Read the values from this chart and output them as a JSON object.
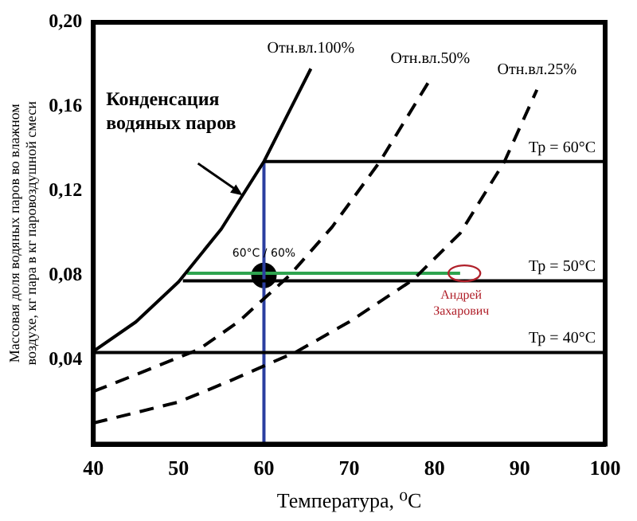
{
  "chart_data": {
    "type": "line",
    "xlabel": "Температура, ⁰С",
    "ylabel": "Массовая доля водяных паров во влажном воздухе, кг пара в кг паровоздушной смеси",
    "xlim": [
      40,
      100
    ],
    "xticks": [
      40,
      50,
      60,
      70,
      80,
      90,
      100
    ],
    "ylim": [
      0,
      0.2
    ],
    "yticks": [
      {
        "value": 0.04,
        "label": "0,04"
      },
      {
        "value": 0.08,
        "label": "0,08"
      },
      {
        "value": 0.12,
        "label": "0,12"
      },
      {
        "value": 0.16,
        "label": "0,16"
      },
      {
        "value": 0.2,
        "label": "0,20"
      }
    ],
    "grid": false,
    "legend": false,
    "marker": "none",
    "series": [
      {
        "name": "Отн.вл.100%",
        "color": "#000000",
        "line_style": "solid",
        "x": [
          40,
          45,
          50,
          55,
          60,
          63,
          65.5
        ],
        "values": [
          0.044,
          0.058,
          0.077,
          0.102,
          0.134,
          0.158,
          0.178
        ]
      },
      {
        "name": "Отн.вл.50%",
        "color": "#000000",
        "line_style": "dashed",
        "x": [
          40,
          45,
          52.4,
          57,
          63,
          68,
          73.6,
          79.5
        ],
        "values": [
          0.025,
          0.033,
          0.045,
          0.058,
          0.08,
          0.103,
          0.134,
          0.173
        ]
      },
      {
        "name": "Отн.вл.25%",
        "color": "#000000",
        "line_style": "dashed",
        "x": [
          40,
          50,
          56,
          63.9,
          70,
          77.5,
          83,
          88.2,
          92
        ],
        "values": [
          0.01,
          0.02,
          0.03,
          0.044,
          0.058,
          0.078,
          0.1,
          0.134,
          0.168
        ]
      },
      {
        "name": "Тр = 60°C",
        "color": "#000000",
        "line_style": "solid",
        "x": [
          60,
          100
        ],
        "values": [
          0.134,
          0.134
        ]
      },
      {
        "name": "Тр = 50°C",
        "color": "#000000",
        "line_style": "solid",
        "x": [
          50.5,
          100
        ],
        "values": [
          0.0775,
          0.0775
        ]
      },
      {
        "name": "Тр = 40°C",
        "color": "#000000",
        "line_style": "solid",
        "x": [
          40,
          100
        ],
        "values": [
          0.0435,
          0.0435
        ]
      },
      {
        "color": "#2b3ea0",
        "line_style": "solid",
        "x": [
          60,
          60
        ],
        "values": [
          0,
          0.134
        ]
      },
      {
        "color": "#2ea44f",
        "line_style": "solid",
        "x": [
          51,
          83
        ],
        "values": [
          0.081,
          0.081
        ]
      },
      {
        "type": "scatter",
        "color": "#000000",
        "marker": "circle",
        "x": [
          60
        ],
        "values": [
          0.08
        ],
        "value_labels": [
          "60°C / 60%"
        ]
      }
    ],
    "annotations": [
      "Конденсация водяных паров",
      {
        "text": "Андрей Захарович",
        "x": 83.5,
        "y": 0.081
      }
    ]
  }
}
